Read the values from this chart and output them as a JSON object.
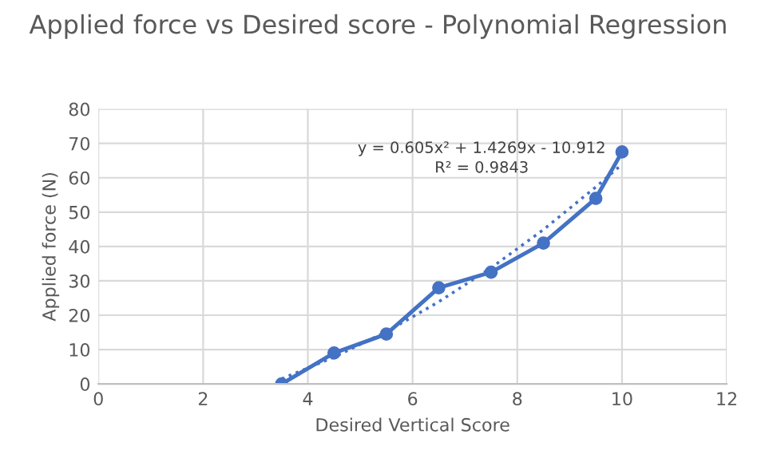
{
  "chart_data": {
    "type": "line",
    "title": "Applied force vs Desired score - Polynomial Regression",
    "xlabel": "Desired Vertical Score",
    "ylabel": "Applied force (N)",
    "xlim": [
      0,
      12
    ],
    "xticks": [
      0,
      2,
      4,
      6,
      8,
      10,
      12
    ],
    "ylim": [
      0,
      80
    ],
    "yticks": [
      0,
      10,
      20,
      30,
      40,
      50,
      60,
      70,
      80
    ],
    "grid": true,
    "series": [
      {
        "color": "#4472c4",
        "x": [
          3.5,
          4.5,
          5.5,
          6.5,
          7.5,
          8.5,
          9.5,
          10
        ],
        "values": [
          0,
          9,
          14.5,
          28,
          32.5,
          41,
          54,
          67.5
        ],
        "marker": "circle",
        "line_style": "solid"
      },
      {
        "type": "line",
        "color": "#4472c4",
        "x": [
          3.5,
          4.5,
          5.5,
          6.5,
          7.5,
          8.5,
          9.5,
          10
        ],
        "values": [
          1.5,
          7.8,
          15.2,
          23.9,
          33.8,
          44.9,
          57.3,
          63.9
        ],
        "marker": "none",
        "line_style": "dotted"
      }
    ],
    "annotations": [
      "y = 0.605x² + 1.4269x - 10.912\nR² = 0.9843"
    ]
  }
}
